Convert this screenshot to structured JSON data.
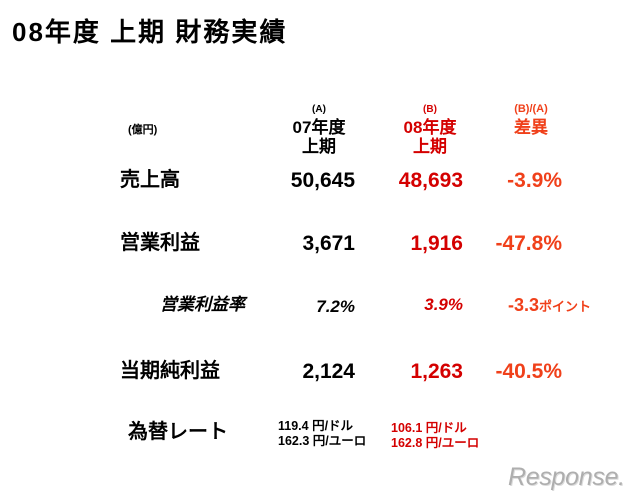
{
  "title": "08年度 上期 財務実績",
  "unit": "(億円)",
  "columns": [
    {
      "tag": "(A)",
      "line1": "07年度",
      "line2": "上期"
    },
    {
      "tag": "(B)",
      "line1": "08年度",
      "line2": "上期"
    },
    {
      "tag": "(B)/(A)",
      "line1": "差異"
    }
  ],
  "rows": [
    {
      "label": "売上高",
      "a": "50,645",
      "b": "48,693",
      "diff": "-3.9%"
    },
    {
      "label": "営業利益",
      "a": "3,671",
      "b": "1,916",
      "diff": "-47.8%"
    },
    {
      "label": "営業利益率",
      "a": "7.2%",
      "b": "3.9%",
      "diff": "-3.3",
      "diff_unit": "ポイント"
    },
    {
      "label": "当期純利益",
      "a": "2,124",
      "b": "1,263",
      "diff": "-40.5%"
    }
  ],
  "fx": {
    "label": "為替レート",
    "a": [
      "119.4 円/ドル",
      "162.3 円/ユーロ"
    ],
    "b": [
      "106.1 円/ドル",
      "162.8 円/ユーロ"
    ]
  },
  "logo": "Response.",
  "colors": {
    "column_a": "#000000",
    "column_b": "#d40000",
    "difference": "#f0401a",
    "logo": "#aeaeae",
    "background": "#ffffff"
  }
}
